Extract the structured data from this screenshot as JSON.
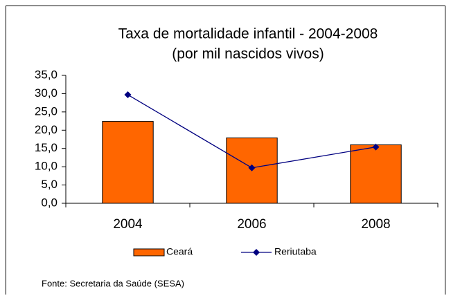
{
  "chart_data": {
    "type": "bar",
    "title": "Taxa de mortalidade infantil - 2004-2008",
    "subtitle": "(por mil nascidos vivos)",
    "categories": [
      "2004",
      "2006",
      "2008"
    ],
    "series": [
      {
        "name": "Ceará",
        "type": "bar",
        "color": "#ff6600",
        "values": [
          22.4,
          17.9,
          16.0
        ]
      },
      {
        "name": "Reriutaba",
        "type": "line",
        "color": "#000080",
        "values": [
          29.7,
          9.7,
          15.4
        ]
      }
    ],
    "ylim": [
      0,
      35
    ],
    "yticks": [
      {
        "value": 0,
        "label": "0,0"
      },
      {
        "value": 5,
        "label": "5,0"
      },
      {
        "value": 10,
        "label": "10,0"
      },
      {
        "value": 15,
        "label": "15,0"
      },
      {
        "value": 20,
        "label": "20,0"
      },
      {
        "value": 25,
        "label": "25,0"
      },
      {
        "value": 30,
        "label": "30,0"
      },
      {
        "value": 35,
        "label": "35,0"
      }
    ],
    "legend": "bottom",
    "source": "Fonte: Secretaria da Saúde (SESA)"
  }
}
